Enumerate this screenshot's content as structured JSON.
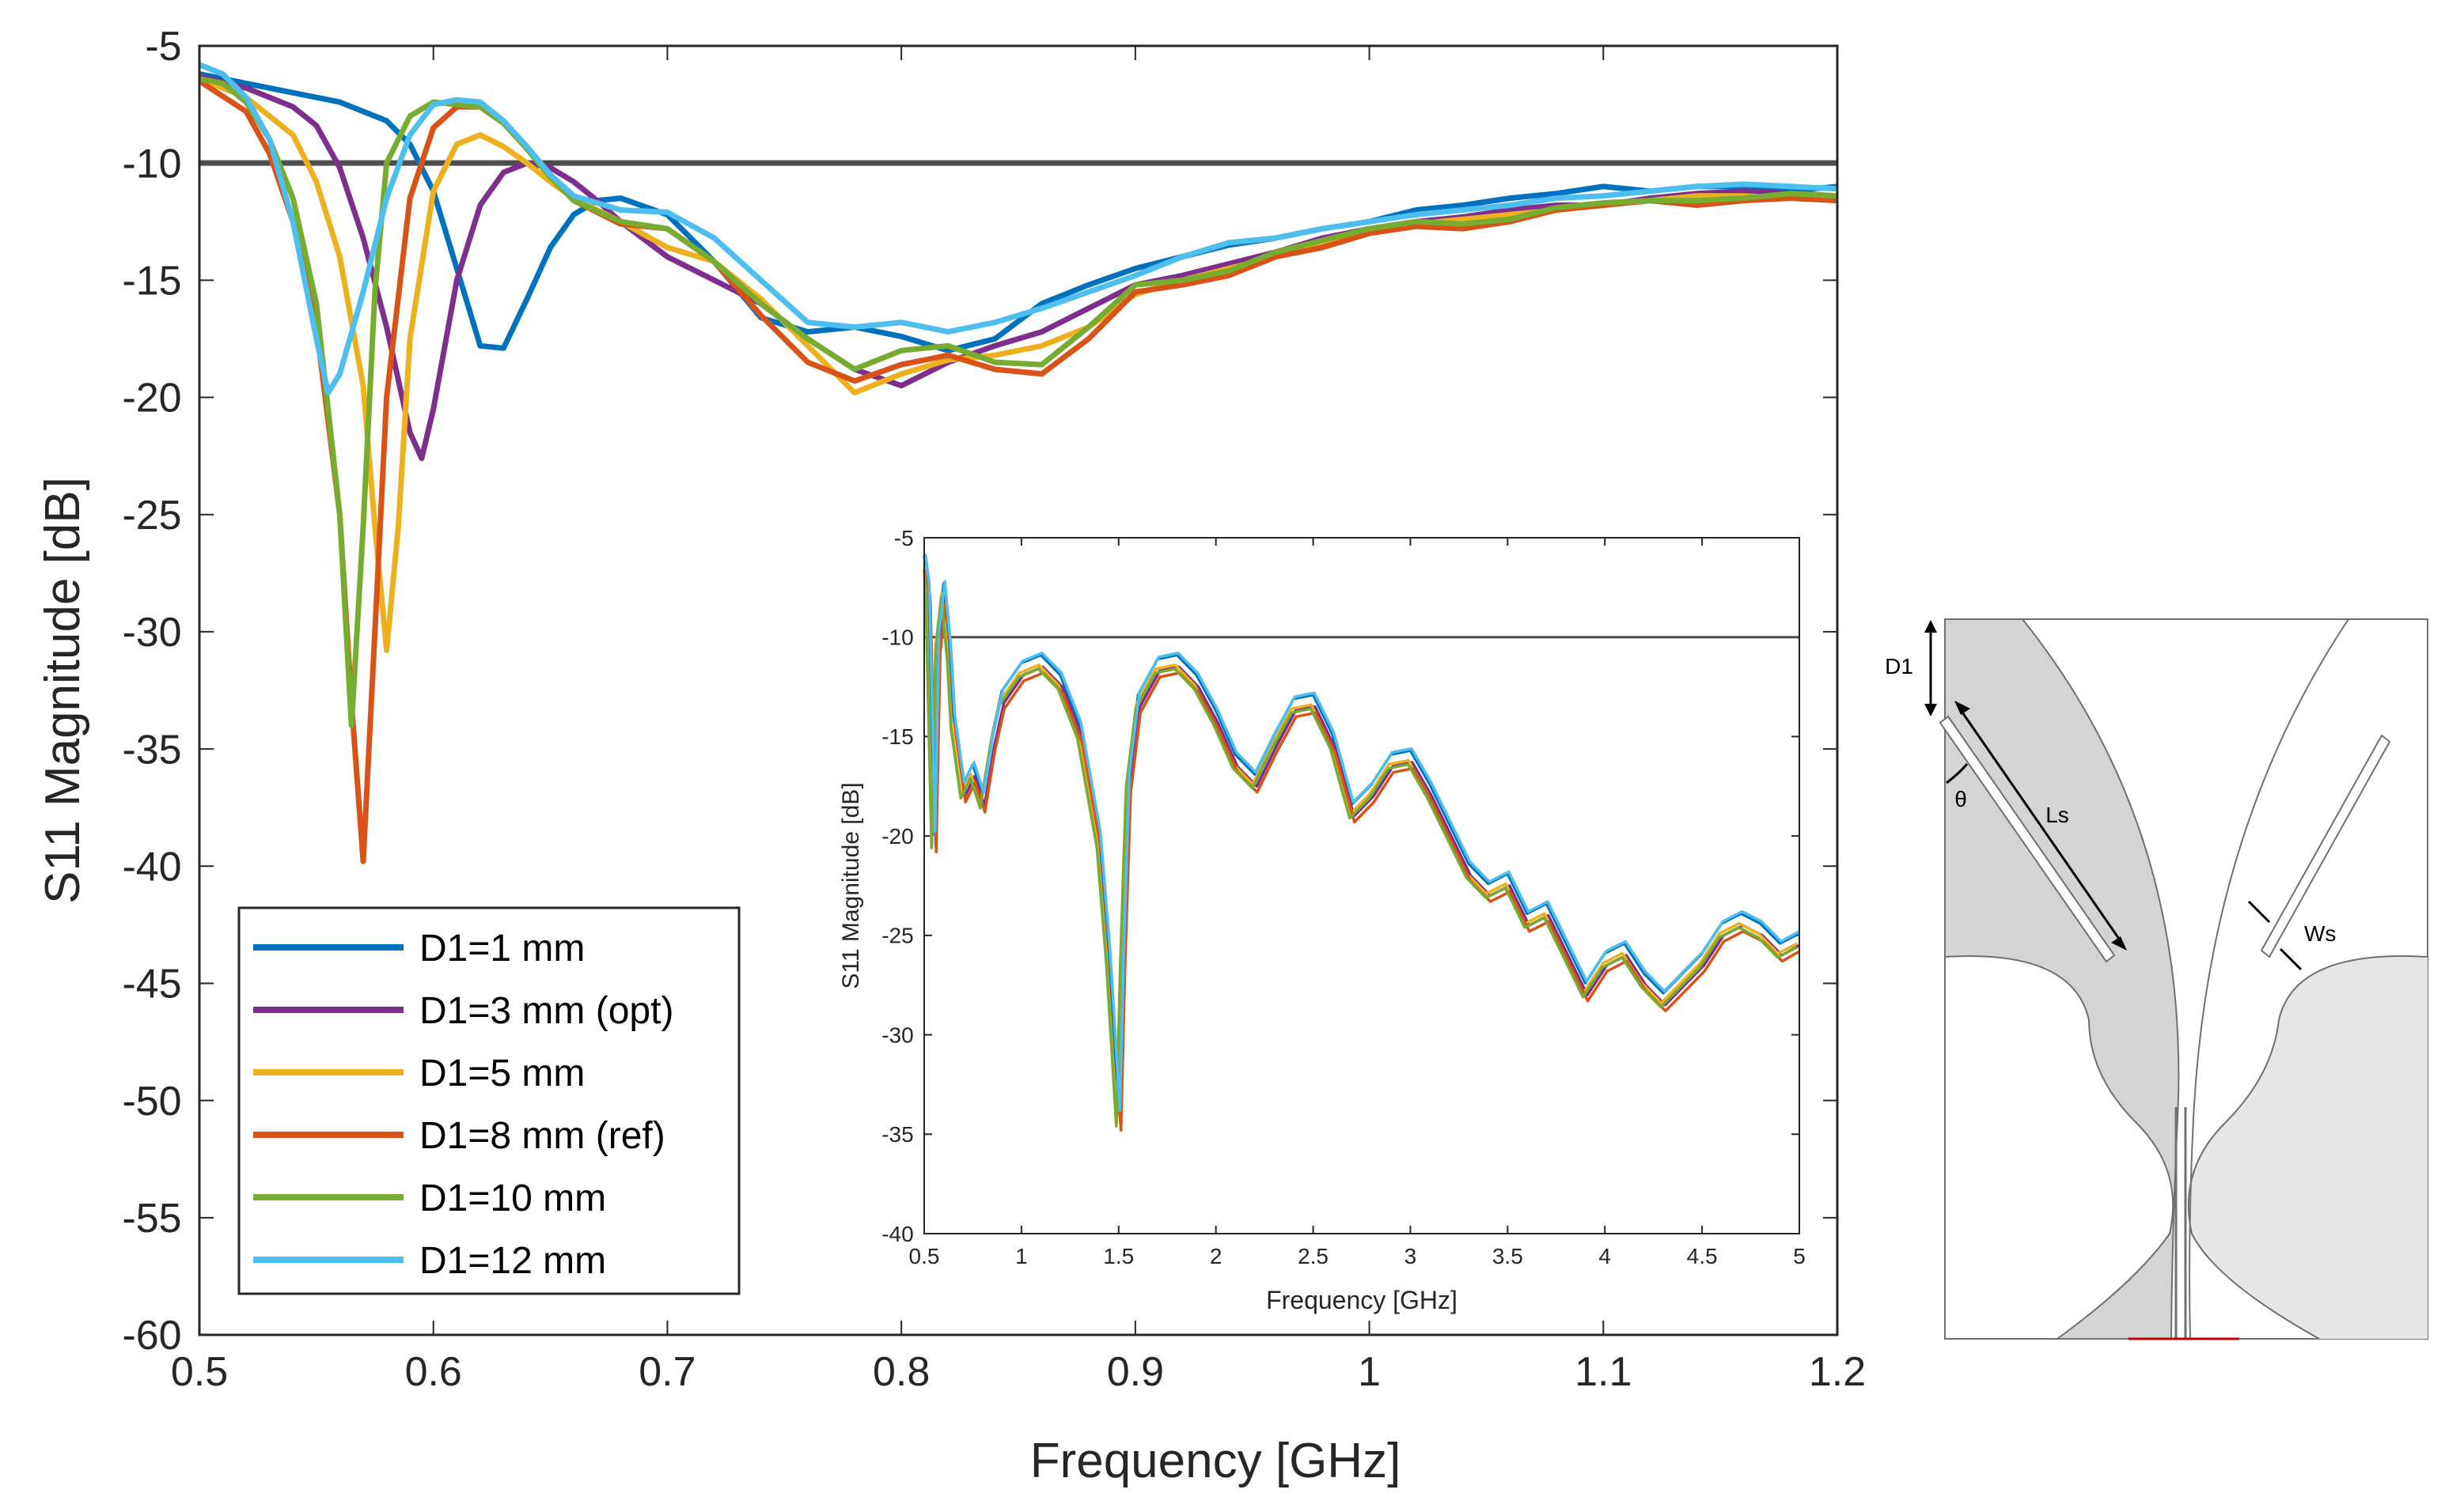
{
  "chart_data": [
    {
      "type": "line",
      "title": "",
      "xlabel": "Frequency [GHz]",
      "ylabel": "S11 Magnitude [dB]",
      "xlim": [
        0.5,
        1.2
      ],
      "ylim": [
        -60,
        -5
      ],
      "xticks": [
        0.5,
        0.6,
        0.7,
        0.8,
        0.9,
        1,
        1.1,
        1.2
      ],
      "xtick_labels": [
        "0.5",
        "0.6",
        "0.7",
        "0.8",
        "0.9",
        "1",
        "1.1",
        "1.2"
      ],
      "yticks": [
        -5,
        -10,
        -15,
        -20,
        -25,
        -30,
        -35,
        -40,
        -45,
        -50,
        -55,
        -60
      ],
      "ytick_labels": [
        "-5",
        "-10",
        "-15",
        "-20",
        "-25",
        "-30",
        "-35",
        "-40",
        "-45",
        "-50",
        "-55",
        "-60"
      ],
      "grid": false,
      "legend_position": "bottom-left",
      "reference_line": {
        "y": -10,
        "color": "#4d4d4d"
      },
      "series": [
        {
          "name": "D1=1 mm",
          "color": "#0072BD",
          "x": [
            0.5,
            0.52,
            0.54,
            0.56,
            0.58,
            0.59,
            0.6,
            0.61,
            0.62,
            0.63,
            0.64,
            0.65,
            0.66,
            0.67,
            0.68,
            0.7,
            0.72,
            0.74,
            0.76,
            0.78,
            0.8,
            0.82,
            0.84,
            0.86,
            0.88,
            0.9,
            0.92,
            0.94,
            0.96,
            0.98,
            1.0,
            1.02,
            1.04,
            1.06,
            1.08,
            1.1,
            1.12,
            1.14,
            1.16,
            1.18,
            1.2
          ],
          "y": [
            -6.2,
            -6.6,
            -7.0,
            -7.4,
            -8.2,
            -9.2,
            -11.2,
            -14.5,
            -17.8,
            -17.9,
            -15.8,
            -13.6,
            -12.2,
            -11.6,
            -11.5,
            -12.2,
            -14.2,
            -16.6,
            -17.2,
            -17.0,
            -17.4,
            -18.0,
            -17.5,
            -16.0,
            -15.2,
            -14.5,
            -14.0,
            -13.5,
            -13.2,
            -12.8,
            -12.5,
            -12.0,
            -11.8,
            -11.5,
            -11.3,
            -11.0,
            -11.2,
            -11.0,
            -11.0,
            -11.2,
            -11.0
          ]
        },
        {
          "name": "D1=3 mm (opt)",
          "color": "#7E2F8E",
          "x": [
            0.5,
            0.52,
            0.54,
            0.55,
            0.56,
            0.57,
            0.58,
            0.59,
            0.595,
            0.6,
            0.61,
            0.62,
            0.63,
            0.64,
            0.65,
            0.66,
            0.67,
            0.68,
            0.7,
            0.72,
            0.74,
            0.76,
            0.78,
            0.8,
            0.82,
            0.84,
            0.86,
            0.88,
            0.9,
            0.92,
            0.94,
            0.96,
            0.98,
            1.0,
            1.02,
            1.04,
            1.06,
            1.08,
            1.1,
            1.12,
            1.14,
            1.16,
            1.18,
            1.2
          ],
          "y": [
            -6.3,
            -6.8,
            -7.6,
            -8.4,
            -10.2,
            -13.2,
            -17.0,
            -21.5,
            -22.6,
            -20.5,
            -15.0,
            -11.8,
            -10.4,
            -10.0,
            -10.2,
            -10.8,
            -11.6,
            -12.5,
            -14.0,
            -15.0,
            -16.0,
            -17.5,
            -18.8,
            -19.5,
            -18.5,
            -17.8,
            -17.2,
            -16.2,
            -15.2,
            -14.8,
            -14.3,
            -13.8,
            -13.2,
            -12.8,
            -12.5,
            -12.3,
            -12.0,
            -11.8,
            -11.8,
            -11.5,
            -11.3,
            -11.2,
            -11.3,
            -11.4
          ]
        },
        {
          "name": "D1=5 mm",
          "color": "#EDB120",
          "x": [
            0.5,
            0.52,
            0.54,
            0.55,
            0.56,
            0.57,
            0.575,
            0.58,
            0.585,
            0.59,
            0.6,
            0.61,
            0.62,
            0.63,
            0.64,
            0.65,
            0.66,
            0.68,
            0.7,
            0.72,
            0.74,
            0.76,
            0.78,
            0.8,
            0.82,
            0.84,
            0.86,
            0.88,
            0.9,
            0.92,
            0.94,
            0.96,
            0.98,
            1.0,
            1.02,
            1.04,
            1.06,
            1.08,
            1.1,
            1.12,
            1.14,
            1.16,
            1.18,
            1.2
          ],
          "y": [
            -6.4,
            -7.2,
            -8.8,
            -10.8,
            -14.0,
            -19.5,
            -25.5,
            -30.8,
            -25.5,
            -17.5,
            -11.2,
            -9.2,
            -8.8,
            -9.3,
            -10.0,
            -10.8,
            -11.5,
            -12.5,
            -13.6,
            -14.2,
            -15.8,
            -17.8,
            -19.8,
            -19.0,
            -18.4,
            -18.2,
            -17.8,
            -17.0,
            -15.6,
            -15.0,
            -14.5,
            -14.0,
            -13.4,
            -13.0,
            -12.6,
            -12.4,
            -12.2,
            -12.0,
            -11.8,
            -11.6,
            -11.4,
            -11.4,
            -11.5,
            -11.5
          ]
        },
        {
          "name": "D1=8 mm (ref)",
          "color": "#D95319",
          "x": [
            0.5,
            0.52,
            0.53,
            0.54,
            0.55,
            0.56,
            0.565,
            0.57,
            0.575,
            0.58,
            0.59,
            0.6,
            0.61,
            0.62,
            0.63,
            0.64,
            0.65,
            0.66,
            0.68,
            0.7,
            0.72,
            0.74,
            0.76,
            0.78,
            0.8,
            0.82,
            0.84,
            0.86,
            0.88,
            0.9,
            0.92,
            0.94,
            0.96,
            0.98,
            1.0,
            1.02,
            1.04,
            1.06,
            1.08,
            1.1,
            1.12,
            1.14,
            1.16,
            1.18,
            1.2
          ],
          "y": [
            -6.5,
            -7.8,
            -9.6,
            -12.5,
            -17.0,
            -25.0,
            -33.0,
            -39.8,
            -30.0,
            -20.0,
            -11.5,
            -8.5,
            -7.6,
            -7.6,
            -8.3,
            -9.3,
            -10.6,
            -11.6,
            -12.6,
            -12.8,
            -14.2,
            -16.5,
            -18.5,
            -19.3,
            -18.6,
            -18.2,
            -18.8,
            -19.0,
            -17.5,
            -15.5,
            -15.2,
            -14.8,
            -14.0,
            -13.6,
            -13.0,
            -12.7,
            -12.8,
            -12.5,
            -12.0,
            -11.8,
            -11.6,
            -11.8,
            -11.6,
            -11.5,
            -11.6
          ]
        },
        {
          "name": "D1=10 mm",
          "color": "#77AC30",
          "x": [
            0.5,
            0.51,
            0.52,
            0.53,
            0.54,
            0.55,
            0.56,
            0.565,
            0.57,
            0.575,
            0.58,
            0.59,
            0.6,
            0.61,
            0.62,
            0.63,
            0.64,
            0.65,
            0.66,
            0.68,
            0.7,
            0.72,
            0.74,
            0.76,
            0.78,
            0.8,
            0.82,
            0.84,
            0.86,
            0.88,
            0.9,
            0.92,
            0.94,
            0.96,
            0.98,
            1.0,
            1.02,
            1.04,
            1.06,
            1.08,
            1.1,
            1.12,
            1.14,
            1.16,
            1.18,
            1.2
          ],
          "y": [
            -6.4,
            -6.6,
            -7.4,
            -9.0,
            -11.5,
            -16.0,
            -25.0,
            -34.0,
            -25.5,
            -15.5,
            -10.0,
            -8.0,
            -7.4,
            -7.5,
            -7.6,
            -8.3,
            -9.4,
            -10.6,
            -11.6,
            -12.5,
            -12.8,
            -14.2,
            -16.0,
            -17.5,
            -18.8,
            -18.0,
            -17.8,
            -18.5,
            -18.6,
            -17.0,
            -15.2,
            -15.0,
            -14.6,
            -13.8,
            -13.3,
            -12.8,
            -12.5,
            -12.6,
            -12.4,
            -11.9,
            -11.7,
            -11.6,
            -11.6,
            -11.5,
            -11.3,
            -11.4
          ]
        },
        {
          "name": "D1=12 mm",
          "color": "#4DBEEE",
          "x": [
            0.5,
            0.51,
            0.52,
            0.53,
            0.54,
            0.55,
            0.555,
            0.56,
            0.57,
            0.58,
            0.59,
            0.6,
            0.61,
            0.62,
            0.63,
            0.64,
            0.65,
            0.66,
            0.68,
            0.7,
            0.72,
            0.74,
            0.76,
            0.78,
            0.8,
            0.82,
            0.84,
            0.86,
            0.88,
            0.9,
            0.92,
            0.94,
            0.96,
            0.98,
            1.0,
            1.02,
            1.04,
            1.06,
            1.08,
            1.1,
            1.12,
            1.14,
            1.16,
            1.18,
            1.2
          ],
          "y": [
            -5.8,
            -6.2,
            -7.2,
            -9.0,
            -12.5,
            -17.5,
            -19.8,
            -19.0,
            -15.5,
            -11.5,
            -8.8,
            -7.5,
            -7.3,
            -7.4,
            -8.2,
            -9.3,
            -10.5,
            -11.4,
            -12.0,
            -12.1,
            -13.2,
            -15.0,
            -16.8,
            -17.0,
            -16.8,
            -17.2,
            -16.8,
            -16.2,
            -15.5,
            -14.8,
            -14.0,
            -13.4,
            -13.2,
            -12.8,
            -12.5,
            -12.2,
            -12.0,
            -11.8,
            -11.5,
            -11.4,
            -11.2,
            -11.0,
            -10.9,
            -11.0,
            -11.1
          ]
        }
      ]
    },
    {
      "type": "line",
      "title": "",
      "xlabel": "Frequency [GHz]",
      "ylabel": "S11 Magnitude [dB]",
      "xlim": [
        0.5,
        5
      ],
      "ylim": [
        -40,
        -5
      ],
      "xticks": [
        0.5,
        1,
        1.5,
        2,
        2.5,
        3,
        3.5,
        4,
        4.5,
        5
      ],
      "xtick_labels": [
        "0.5",
        "1",
        "1.5",
        "2",
        "2.5",
        "3",
        "3.5",
        "4",
        "4.5",
        "5"
      ],
      "yticks": [
        -5,
        -10,
        -15,
        -20,
        -25,
        -30,
        -35,
        -40
      ],
      "ytick_labels": [
        "-5",
        "-10",
        "-15",
        "-20",
        "-25",
        "-30",
        "-35",
        "-40"
      ],
      "grid": false,
      "legend_position": "none",
      "reference_line": {
        "y": -10,
        "color": "#4d4d4d"
      },
      "series": [
        {
          "name": "D1=1 mm",
          "color": "#0072BD",
          "dx": 0.0,
          "dy": 0.1
        },
        {
          "name": "D1=3 mm (opt)",
          "color": "#7E2F8E",
          "dx": 0.01,
          "dy": -0.5
        },
        {
          "name": "D1=5 mm",
          "color": "#EDB120",
          "dx": -0.01,
          "dy": -0.4
        },
        {
          "name": "D1=8 mm (ref)",
          "color": "#D95319",
          "dx": 0.012,
          "dy": -0.8
        },
        {
          "name": "D1=10 mm",
          "color": "#77AC30",
          "dx": -0.012,
          "dy": -0.6
        },
        {
          "name": "D1=12 mm",
          "color": "#4DBEEE",
          "dx": 0.006,
          "dy": 0.2
        }
      ],
      "base_curve": {
        "x": [
          0.5,
          0.52,
          0.55,
          0.57,
          0.6,
          0.63,
          0.65,
          0.7,
          0.75,
          0.8,
          0.85,
          0.9,
          1.0,
          1.1,
          1.2,
          1.3,
          1.4,
          1.45,
          1.5,
          1.52,
          1.55,
          1.6,
          1.7,
          1.8,
          1.9,
          2.0,
          2.1,
          2.2,
          2.3,
          2.4,
          2.5,
          2.6,
          2.7,
          2.8,
          2.9,
          3.0,
          3.1,
          3.2,
          3.3,
          3.4,
          3.5,
          3.6,
          3.7,
          3.8,
          3.9,
          4.0,
          4.1,
          4.2,
          4.3,
          4.4,
          4.5,
          4.6,
          4.7,
          4.8,
          4.9,
          5.0
        ],
        "y": [
          -6.0,
          -7.5,
          -20.0,
          -10.0,
          -7.4,
          -10.5,
          -14.0,
          -17.5,
          -16.5,
          -18.0,
          -15.0,
          -12.8,
          -11.4,
          -11.0,
          -12.0,
          -14.5,
          -20.0,
          -26.0,
          -34.0,
          -26.0,
          -17.0,
          -13.0,
          -11.2,
          -11.0,
          -12.0,
          -13.8,
          -16.0,
          -17.0,
          -15.0,
          -13.2,
          -13.0,
          -15.0,
          -18.5,
          -17.5,
          -16.0,
          -15.8,
          -17.5,
          -19.5,
          -21.5,
          -22.5,
          -22.0,
          -24.0,
          -23.5,
          -25.5,
          -27.5,
          -26.0,
          -25.5,
          -27.0,
          -28.0,
          -27.0,
          -26.0,
          -24.5,
          -24.0,
          -24.5,
          -25.5,
          -25.0
        ]
      }
    }
  ],
  "antenna_diagram": {
    "labels": {
      "d1": "D1",
      "theta": "θ",
      "ls": "Ls",
      "ws": "Ws"
    },
    "colors": {
      "dark_flare": "#d4d4d4",
      "light_flare": "#e6e6e6",
      "outline": "#707070",
      "feed": "#c00000"
    }
  }
}
